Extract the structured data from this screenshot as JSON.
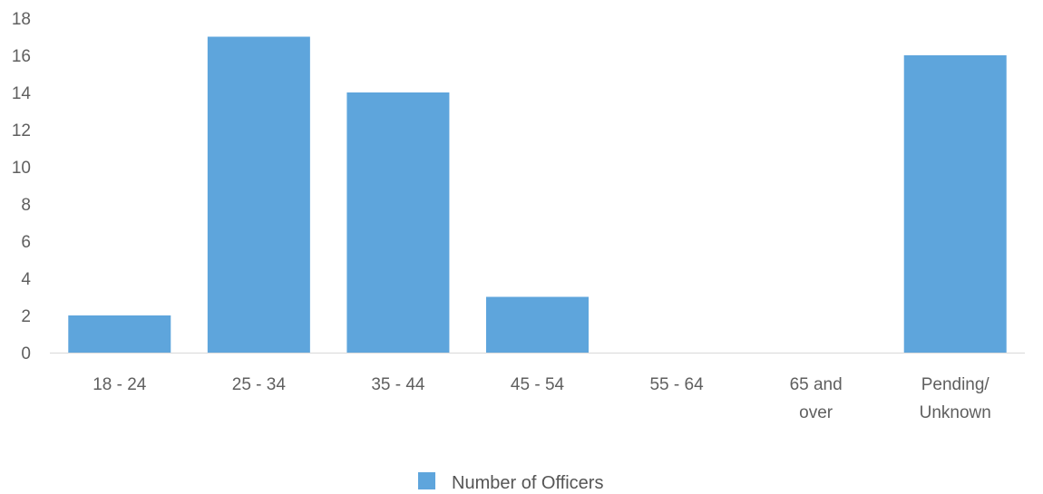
{
  "chart_data": {
    "type": "bar",
    "title": "",
    "xlabel": "",
    "ylabel": "",
    "categories": [
      "18 - 24",
      "25 - 34",
      "35 - 44",
      "45 - 54",
      "55 - 64",
      "65 and over",
      "Pending/ Unknown"
    ],
    "category_lines": [
      [
        "18 - 24"
      ],
      [
        "25 - 34"
      ],
      [
        "35 - 44"
      ],
      [
        "45 - 54"
      ],
      [
        "55 - 64"
      ],
      [
        "65 and",
        "over"
      ],
      [
        "Pending/",
        "Unknown"
      ]
    ],
    "series": [
      {
        "name": "Number of Officers",
        "values": [
          2,
          17,
          14,
          3,
          0,
          0,
          16
        ],
        "color": "#5ea5dc"
      }
    ],
    "ylim": [
      0,
      18
    ],
    "yticks": [
      0,
      2,
      4,
      6,
      8,
      10,
      12,
      14,
      16,
      18
    ],
    "grid": false,
    "legend_position": "bottom"
  }
}
